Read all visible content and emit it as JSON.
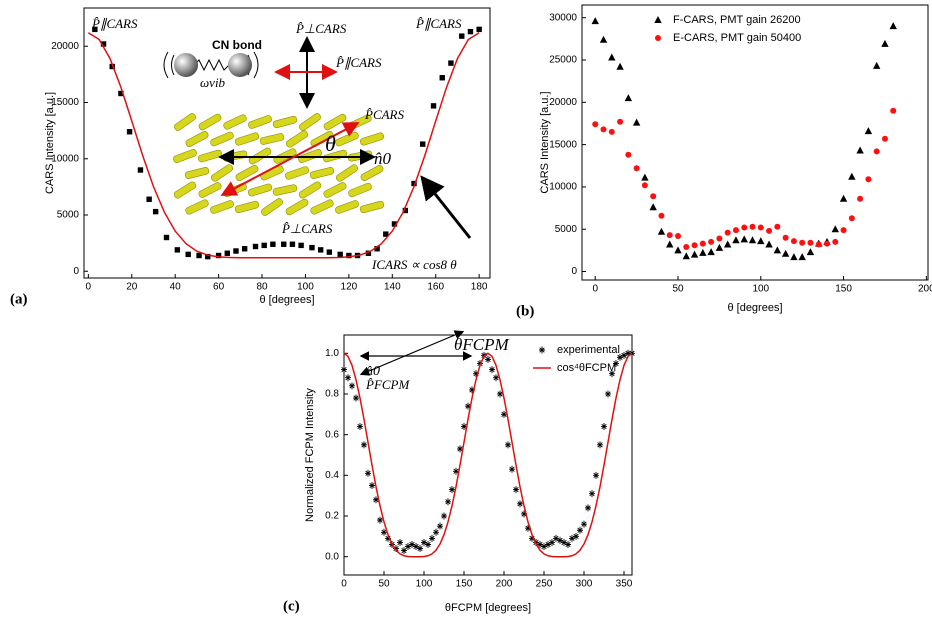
{
  "chart_data": [
    {
      "type": "scatter",
      "label": "(a)",
      "xlabel": "θ   [degrees]",
      "ylabel": "CARS Intensity [a.u.]",
      "xlim": [
        -2,
        185
      ],
      "ylim": [
        -600,
        23400
      ],
      "xticks": [
        0,
        20,
        40,
        60,
        80,
        100,
        120,
        140,
        160,
        180
      ],
      "yticks": [
        0,
        5000,
        10000,
        15000,
        20000
      ],
      "annotations": [
        "CN bond",
        "P̂∥CARS",
        "P̂⊥CARS",
        "P̂∥CARS",
        "P̂CARS",
        "θ",
        "n̂0",
        "ωvib",
        "P̂⊥CARS",
        "P̂∥CARS",
        "ICARS ∝ cos8 θ"
      ],
      "series": [
        {
          "color": "#000000",
          "marker": "square",
          "x": [
            3,
            7,
            11,
            15,
            19,
            24,
            28,
            31,
            36,
            41,
            46,
            51,
            55,
            60,
            64,
            68,
            72,
            77,
            81,
            85,
            90,
            94,
            98,
            103,
            107,
            111,
            116,
            120,
            124,
            129,
            133,
            137,
            141,
            146,
            150,
            154,
            159,
            163,
            167,
            172,
            176,
            180
          ],
          "values": [
            21500,
            20200,
            18200,
            15800,
            12400,
            9000,
            6400,
            5300,
            3000,
            1900,
            1500,
            1400,
            1300,
            1400,
            1600,
            1800,
            2000,
            2200,
            2300,
            2400,
            2400,
            2400,
            2300,
            2100,
            1900,
            1700,
            1500,
            1400,
            1400,
            1600,
            2000,
            3300,
            4200,
            5400,
            7800,
            11300,
            14700,
            17200,
            18500,
            20900,
            21300,
            21500
          ]
        },
        {
          "color": "#e01010",
          "marker": "line",
          "x": [
            0,
            5,
            10,
            15,
            20,
            25,
            30,
            35,
            40,
            45,
            50,
            55,
            60,
            65,
            70,
            75,
            80,
            85,
            90,
            95,
            100,
            105,
            110,
            115,
            120,
            125,
            130,
            135,
            140,
            145,
            150,
            155,
            160,
            165,
            170,
            175,
            180
          ],
          "values": [
            21200,
            20600,
            18900,
            16360,
            13360,
            10300,
            7520,
            5260,
            3570,
            2450,
            1780,
            1430,
            1280,
            1220,
            1200,
            1200,
            1200,
            1200,
            1200,
            1200,
            1200,
            1200,
            1200,
            1220,
            1280,
            1430,
            1780,
            2450,
            3570,
            5260,
            7520,
            10300,
            13360,
            16360,
            18900,
            20600,
            21200
          ]
        }
      ]
    },
    {
      "type": "scatter",
      "label": "(b)",
      "xlabel": "θ  [degrees]",
      "ylabel": "CARS Intensity [a.u.]",
      "xlim": [
        -8,
        201
      ],
      "ylim": [
        -1000,
        31500
      ],
      "xticks": [
        0,
        50,
        100,
        150,
        200
      ],
      "yticks": [
        0,
        5000,
        10000,
        15000,
        20000,
        25000,
        30000
      ],
      "legend": "upper right",
      "x": [
        0,
        5,
        10,
        15,
        20,
        25,
        30,
        35,
        40,
        45,
        50,
        55,
        60,
        65,
        70,
        75,
        80,
        85,
        90,
        95,
        100,
        105,
        110,
        115,
        120,
        125,
        130,
        135,
        140,
        145,
        150,
        155,
        160,
        165,
        170,
        175,
        180
      ],
      "series": [
        {
          "name": "F-CARS, PMT gain 26200",
          "color": "#000000",
          "marker": "triangle",
          "values": [
            29600,
            27400,
            25300,
            24200,
            20500,
            17600,
            11100,
            7600,
            4700,
            3200,
            2500,
            1800,
            2000,
            2200,
            2300,
            2800,
            3200,
            3700,
            3800,
            3700,
            3600,
            3200,
            2500,
            2100,
            1700,
            1700,
            2300,
            3300,
            3500,
            5000,
            8600,
            11200,
            14300,
            16600,
            24300,
            26900,
            29000
          ]
        },
        {
          "name": "E-CARS, PMT gain 50400",
          "color": "#ff1010",
          "marker": "circle",
          "values": [
            17400,
            16800,
            16500,
            17700,
            13800,
            12200,
            10200,
            8900,
            6600,
            4300,
            4200,
            2900,
            3100,
            3300,
            3500,
            3900,
            4600,
            4900,
            5200,
            5300,
            5200,
            4800,
            5300,
            4000,
            3600,
            3400,
            3400,
            3200,
            3300,
            3500,
            4900,
            6300,
            8600,
            10900,
            14200,
            15700,
            19000
          ]
        }
      ]
    },
    {
      "type": "scatter",
      "label": "(c)",
      "xlabel": "θFCPM  [degrees]",
      "ylabel": "Normalized FCPM Intensity",
      "xlim": [
        0,
        360
      ],
      "ylim": [
        -0.09,
        1.09
      ],
      "xticks": [
        0,
        50,
        100,
        150,
        200,
        250,
        300,
        350
      ],
      "yticks": [
        {
          "value": 0,
          "label": "0.0"
        },
        0.2,
        0.4,
        0.6,
        0.8,
        {
          "value": 1,
          "label": "1.0"
        }
      ],
      "legend": "upper right",
      "annotations": [
        "n̂0",
        "θFCPM",
        "P̂FCPM"
      ],
      "x": [
        0,
        5,
        10,
        15,
        20,
        25,
        30,
        35,
        40,
        45,
        50,
        55,
        60,
        65,
        70,
        75,
        80,
        85,
        90,
        95,
        100,
        105,
        110,
        115,
        120,
        125,
        130,
        135,
        140,
        145,
        150,
        155,
        160,
        165,
        170,
        175,
        180,
        185,
        190,
        195,
        200,
        205,
        210,
        215,
        220,
        225,
        230,
        235,
        240,
        245,
        250,
        255,
        260,
        265,
        270,
        275,
        280,
        285,
        290,
        295,
        300,
        305,
        310,
        315,
        320,
        325,
        330,
        335,
        340,
        345,
        350,
        355,
        360
      ],
      "series": [
        {
          "name": "experimental",
          "color": "#000000",
          "marker": "star",
          "values": [
            0.92,
            0.88,
            0.84,
            0.78,
            0.64,
            0.55,
            0.41,
            0.35,
            0.28,
            0.18,
            0.12,
            0.09,
            0.06,
            0.04,
            0.07,
            0.03,
            0.05,
            0.06,
            0.05,
            0.04,
            0.07,
            0.06,
            0.09,
            0.12,
            0.15,
            0.2,
            0.27,
            0.33,
            0.42,
            0.53,
            0.64,
            0.74,
            0.82,
            0.9,
            0.95,
            0.99,
            0.97,
            0.92,
            0.88,
            0.8,
            0.7,
            0.55,
            0.43,
            0.33,
            0.26,
            0.21,
            0.14,
            0.09,
            0.07,
            0.06,
            0.05,
            0.06,
            0.07,
            0.09,
            0.08,
            0.07,
            0.06,
            0.09,
            0.1,
            0.13,
            0.16,
            0.24,
            0.31,
            0.4,
            0.55,
            0.64,
            0.8,
            0.9,
            0.95,
            0.98,
            0.99,
            1,
            1
          ]
        },
        {
          "name": "cos⁴θFCPM",
          "color": "#e01010",
          "marker": "line",
          "values": [
            1,
            0.985,
            0.941,
            0.87,
            0.78,
            0.675,
            0.5625,
            0.45,
            0.344,
            0.25,
            0.171,
            0.108,
            0.0625,
            0.0319,
            0.0137,
            0.0045,
            0.0009,
            0,
            0,
            0,
            0.0009,
            0.0045,
            0.0137,
            0.0319,
            0.0625,
            0.108,
            0.171,
            0.25,
            0.344,
            0.45,
            0.5625,
            0.675,
            0.78,
            0.87,
            0.941,
            0.985,
            1,
            0.985,
            0.941,
            0.87,
            0.78,
            0.675,
            0.5625,
            0.45,
            0.344,
            0.25,
            0.171,
            0.108,
            0.0625,
            0.0319,
            0.0137,
            0.0045,
            0.0009,
            0,
            0,
            0,
            0.0009,
            0.0045,
            0.0137,
            0.0319,
            0.0625,
            0.108,
            0.171,
            0.25,
            0.344,
            0.45,
            0.5625,
            0.675,
            0.78,
            0.87,
            0.941,
            0.985,
            1
          ]
        }
      ]
    }
  ]
}
